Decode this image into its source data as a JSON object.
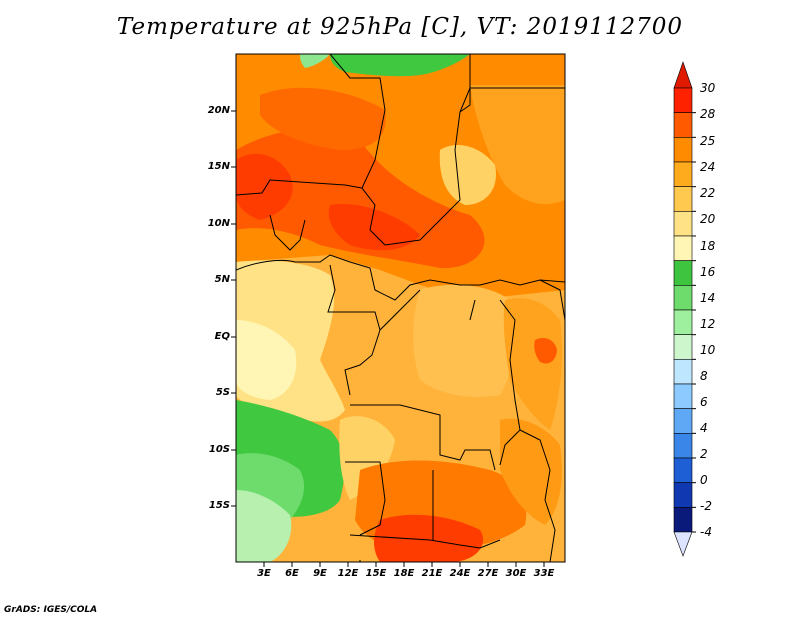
{
  "title": "Temperature at 925hPa [C], VT: 2019112700",
  "credit": "GrADS: IGES/COLA",
  "lat_labels": [
    "20N",
    "15N",
    "10N",
    "5N",
    "EQ",
    "5S",
    "10S",
    "15S"
  ],
  "lon_labels": [
    "3E",
    "6E",
    "9E",
    "12E",
    "15E",
    "18E",
    "21E",
    "24E",
    "27E",
    "30E",
    "33E"
  ],
  "colorbar": {
    "labels": [
      "30",
      "28",
      "25",
      "24",
      "22",
      "20",
      "18",
      "16",
      "14",
      "12",
      "10",
      "8",
      "6",
      "4",
      "2",
      "0",
      "-2",
      "-4"
    ],
    "colors": [
      "#ff2200",
      "#ff5a00",
      "#ff8c00",
      "#ffab1e",
      "#ffc94f",
      "#ffe285",
      "#fff5b4",
      "#3ec43e",
      "#6ddc6d",
      "#9eef9e",
      "#cdf6cd",
      "#bfe6ff",
      "#8ccaff",
      "#5fa8f5",
      "#3a86e8",
      "#1e5fd6",
      "#1038b0",
      "#0a1a7a",
      "#05104a"
    ],
    "top_arrow_color": "#e01a00",
    "bottom_arrow_color": "#dce4ff"
  },
  "field_colors": {
    "hot": "#ff3c00",
    "warm_red": "#ff6a00",
    "orange": "#ff9a14",
    "light_orange": "#ffb33a",
    "yellow": "#ffd266",
    "pale": "#ffe9a0",
    "green": "#40c840",
    "light_green": "#8ee68e",
    "pale_green": "#b8f0b0"
  }
}
